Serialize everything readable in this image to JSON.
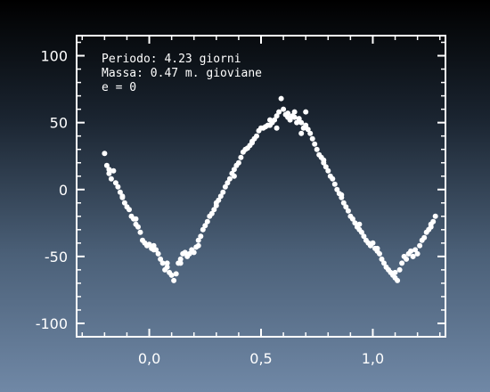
{
  "chart_data": {
    "type": "scatter",
    "title": "",
    "xlabel": "",
    "ylabel": "",
    "xlim": [
      -0.325,
      1.325
    ],
    "ylim": [
      -110,
      115
    ],
    "xticks": [
      0.0,
      0.5,
      1.0
    ],
    "xtick_labels": [
      "0,0",
      "0,5",
      "1,0"
    ],
    "yticks": [
      100,
      50,
      0,
      -50,
      -100
    ],
    "ytick_labels": [
      "100",
      "50",
      "0",
      "-50",
      "-100"
    ],
    "grid": false,
    "legend": "none",
    "annotations": [
      "Periodo: 4.23 giorni",
      "Massa: 0.47 m. gioviane",
      "e = 0"
    ],
    "colors": {
      "points": "#ffffff",
      "axes": "#ffffff"
    },
    "series": [
      {
        "points": [
          [
            -0.2,
            27
          ],
          [
            -0.19,
            18
          ],
          [
            -0.18,
            12
          ],
          [
            -0.16,
            14
          ],
          [
            -0.17,
            8
          ],
          [
            -0.15,
            5
          ],
          [
            -0.14,
            2
          ],
          [
            -0.13,
            -2
          ],
          [
            -0.12,
            -6
          ],
          [
            -0.11,
            -10
          ],
          [
            -0.1,
            -13
          ],
          [
            -0.09,
            -15
          ],
          [
            -0.08,
            -20
          ],
          [
            -0.07,
            -22
          ],
          [
            -0.06,
            -26
          ],
          [
            -0.05,
            -28
          ],
          [
            -0.04,
            -32
          ],
          [
            -0.03,
            -38
          ],
          [
            -0.02,
            -40
          ],
          [
            -0.01,
            -42
          ],
          [
            0.0,
            -41
          ],
          [
            0.01,
            -44
          ],
          [
            0.02,
            -42
          ],
          [
            0.03,
            -45
          ],
          [
            0.04,
            -48
          ],
          [
            0.05,
            -52
          ],
          [
            0.06,
            -55
          ],
          [
            0.07,
            -60
          ],
          [
            0.08,
            -58
          ],
          [
            0.09,
            -62
          ],
          [
            0.1,
            -64
          ],
          [
            0.11,
            -68
          ],
          [
            0.12,
            -63
          ],
          [
            0.13,
            -55
          ],
          [
            0.14,
            -52
          ],
          [
            0.15,
            -48
          ],
          [
            0.16,
            -47
          ],
          [
            0.17,
            -50
          ],
          [
            0.18,
            -48
          ],
          [
            0.19,
            -45
          ],
          [
            0.2,
            -47
          ],
          [
            0.21,
            -43
          ],
          [
            0.22,
            -38
          ],
          [
            0.23,
            -35
          ],
          [
            0.24,
            -30
          ],
          [
            0.25,
            -27
          ],
          [
            0.26,
            -24
          ],
          [
            0.27,
            -20
          ],
          [
            0.28,
            -18
          ],
          [
            0.29,
            -15
          ],
          [
            0.3,
            -10
          ],
          [
            0.31,
            -8
          ],
          [
            0.32,
            -5
          ],
          [
            0.33,
            -2
          ],
          [
            0.34,
            2
          ],
          [
            0.35,
            5
          ],
          [
            0.36,
            8
          ],
          [
            0.37,
            12
          ],
          [
            0.38,
            15
          ],
          [
            0.39,
            18
          ],
          [
            0.4,
            20
          ],
          [
            0.41,
            24
          ],
          [
            0.42,
            28
          ],
          [
            0.43,
            30
          ],
          [
            0.44,
            31
          ],
          [
            0.45,
            33
          ],
          [
            0.46,
            35
          ],
          [
            0.47,
            38
          ],
          [
            0.48,
            40
          ],
          [
            0.49,
            44
          ],
          [
            0.5,
            46
          ],
          [
            0.51,
            46
          ],
          [
            0.52,
            47
          ],
          [
            0.53,
            48
          ],
          [
            0.54,
            48
          ],
          [
            0.55,
            50
          ],
          [
            0.56,
            52
          ],
          [
            0.57,
            55
          ],
          [
            0.58,
            58
          ],
          [
            0.59,
            68
          ],
          [
            0.6,
            60
          ],
          [
            0.61,
            56
          ],
          [
            0.62,
            57
          ],
          [
            0.63,
            52
          ],
          [
            0.64,
            55
          ],
          [
            0.65,
            54
          ],
          [
            0.66,
            50
          ],
          [
            0.67,
            53
          ],
          [
            0.68,
            50
          ],
          [
            0.69,
            46
          ],
          [
            0.7,
            58
          ],
          [
            0.71,
            45
          ],
          [
            0.72,
            42
          ],
          [
            0.73,
            38
          ],
          [
            0.74,
            34
          ],
          [
            0.75,
            30
          ],
          [
            0.76,
            26
          ],
          [
            0.77,
            24
          ],
          [
            0.78,
            20
          ],
          [
            0.79,
            17
          ],
          [
            0.8,
            14
          ],
          [
            0.81,
            10
          ],
          [
            0.82,
            8
          ],
          [
            0.83,
            4
          ],
          [
            0.84,
            0
          ],
          [
            0.85,
            -3
          ],
          [
            0.86,
            -6
          ],
          [
            0.87,
            -10
          ],
          [
            0.88,
            -13
          ],
          [
            0.89,
            -16
          ],
          [
            0.9,
            -20
          ],
          [
            0.91,
            -22
          ],
          [
            0.92,
            -25
          ],
          [
            0.93,
            -28
          ],
          [
            0.94,
            -30
          ],
          [
            0.95,
            -32
          ],
          [
            0.96,
            -35
          ],
          [
            0.97,
            -38
          ],
          [
            0.98,
            -40
          ],
          [
            0.99,
            -42
          ],
          [
            1.0,
            -40
          ],
          [
            1.01,
            -44
          ],
          [
            1.02,
            -46
          ],
          [
            1.03,
            -48
          ],
          [
            1.04,
            -52
          ],
          [
            1.05,
            -55
          ],
          [
            1.06,
            -58
          ],
          [
            1.07,
            -60
          ],
          [
            1.08,
            -62
          ],
          [
            1.09,
            -64
          ],
          [
            1.1,
            -66
          ],
          [
            1.11,
            -68
          ],
          [
            1.12,
            -60
          ],
          [
            1.13,
            -55
          ],
          [
            1.14,
            -50
          ],
          [
            1.15,
            -52
          ],
          [
            1.16,
            -48
          ],
          [
            1.17,
            -46
          ],
          [
            1.18,
            -50
          ],
          [
            1.19,
            -45
          ],
          [
            1.2,
            -48
          ],
          [
            1.21,
            -42
          ],
          [
            1.22,
            -38
          ],
          [
            1.23,
            -36
          ],
          [
            1.24,
            -32
          ],
          [
            1.25,
            -30
          ],
          [
            1.26,
            -28
          ],
          [
            1.27,
            -24
          ],
          [
            1.28,
            -20
          ],
          [
            -0.18,
            15
          ],
          [
            -0.12,
            -5
          ],
          [
            -0.06,
            -22
          ],
          [
            0.02,
            -45
          ],
          [
            0.08,
            -55
          ],
          [
            0.14,
            -55
          ],
          [
            0.22,
            -42
          ],
          [
            0.3,
            -12
          ],
          [
            0.38,
            10
          ],
          [
            0.46,
            36
          ],
          [
            0.54,
            52
          ],
          [
            0.62,
            54
          ],
          [
            0.7,
            48
          ],
          [
            0.78,
            22
          ],
          [
            0.86,
            -4
          ],
          [
            0.94,
            -26
          ],
          [
            1.02,
            -44
          ],
          [
            1.1,
            -62
          ],
          [
            1.18,
            -50
          ],
          [
            1.26,
            -26
          ],
          [
            0.57,
            46
          ],
          [
            0.65,
            58
          ],
          [
            0.68,
            42
          ]
        ]
      }
    ]
  }
}
